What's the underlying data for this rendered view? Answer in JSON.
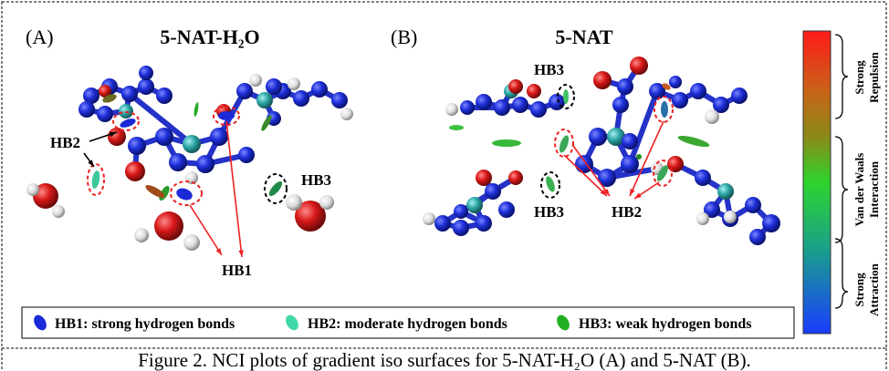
{
  "panel_a": {
    "label": "(A)",
    "title": "5-NAT-H₂O",
    "annotations": [
      "HB2",
      "HB3",
      "HB1"
    ]
  },
  "panel_b": {
    "label": "(B)",
    "title": "5-NAT",
    "annotations": [
      "HB3",
      "HB3",
      "HB2"
    ]
  },
  "colorbar": {
    "sections": [
      [
        "Strong",
        "Repulsion"
      ],
      [
        "Van der Waals",
        "Interaction"
      ],
      [
        "Strong",
        "Attraction"
      ]
    ]
  },
  "legend": [
    "HB1: strong hydrogen bonds",
    "HB2: moderate hydrogen bonds",
    "HB3: weak hydrogen bonds"
  ],
  "caption": "Figure 2. NCI plots of gradient iso surfaces for 5-NAT-H₂O (A) and 5-NAT (B)."
}
